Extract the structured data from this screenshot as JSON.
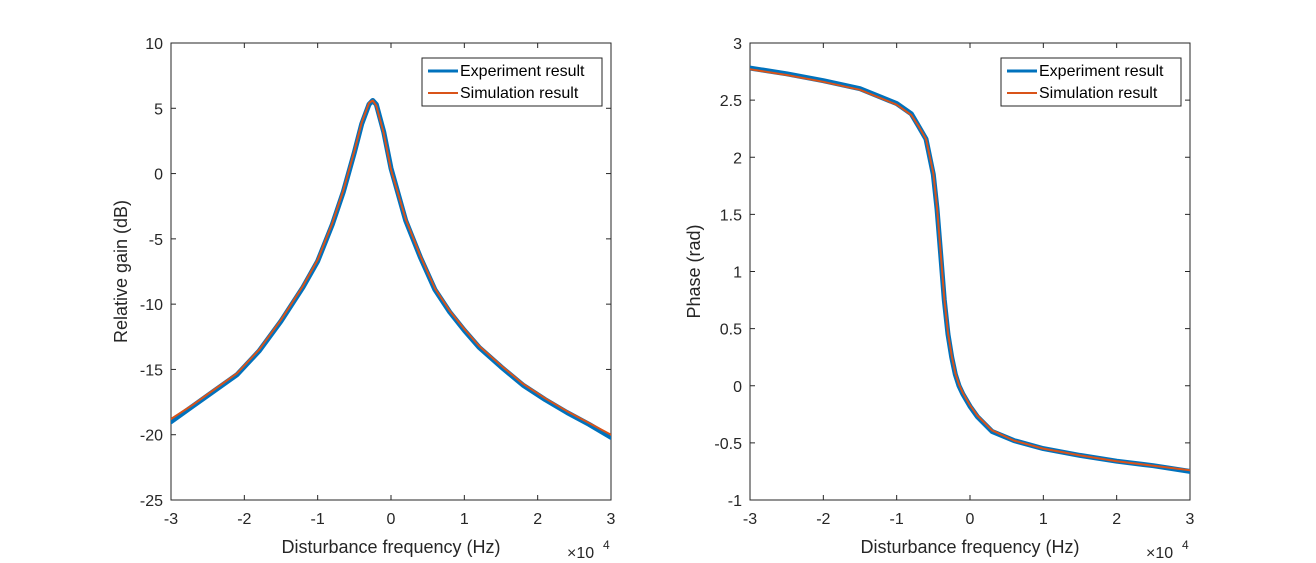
{
  "chart_data": [
    {
      "type": "line",
      "xlabel": "Disturbance frequency (Hz)",
      "ylabel": "Relative gain (dB)",
      "x_exponent_label": "×10",
      "x_exponent_power": "4",
      "xlim": [
        -30000,
        30000
      ],
      "ylim": [
        -25,
        10
      ],
      "x_tick_values": [
        -30000,
        -20000,
        -10000,
        0,
        10000,
        20000,
        30000
      ],
      "x_tick_labels": [
        "-3",
        "-2",
        "-1",
        "0",
        "1",
        "2",
        "3"
      ],
      "y_tick_values": [
        -25,
        -20,
        -15,
        -10,
        -5,
        0,
        5,
        10
      ],
      "y_tick_labels": [
        "-25",
        "-20",
        "-15",
        "-10",
        "-5",
        "0",
        "5",
        "10"
      ],
      "legend_position": "top-right",
      "series": [
        {
          "name": "Experiment result",
          "color": "#0072BD",
          "x": [
            -30000,
            -27000,
            -24000,
            -21000,
            -18000,
            -15000,
            -12000,
            -10000,
            -8000,
            -6500,
            -5000,
            -4000,
            -3000,
            -2500,
            -2000,
            -1000,
            0,
            2000,
            4000,
            6000,
            8000,
            10000,
            12000,
            15000,
            18000,
            21000,
            24000,
            27000,
            30000
          ],
          "y": [
            -19.0,
            -17.8,
            -16.6,
            -15.4,
            -13.6,
            -11.3,
            -8.7,
            -6.7,
            -3.9,
            -1.4,
            1.6,
            3.8,
            5.3,
            5.6,
            5.3,
            3.2,
            0.4,
            -3.6,
            -6.4,
            -8.9,
            -10.6,
            -12.0,
            -13.3,
            -14.8,
            -16.2,
            -17.3,
            -18.3,
            -19.2,
            -20.2
          ]
        },
        {
          "name": "Simulation result",
          "color": "#D95319",
          "x": [
            -30000,
            -27000,
            -24000,
            -21000,
            -18000,
            -15000,
            -12000,
            -10000,
            -8000,
            -6500,
            -5000,
            -4000,
            -3000,
            -2500,
            -2000,
            -1000,
            0,
            2000,
            4000,
            6000,
            8000,
            10000,
            12000,
            15000,
            18000,
            21000,
            24000,
            27000,
            30000
          ],
          "y": [
            -18.8,
            -17.7,
            -16.5,
            -15.3,
            -13.5,
            -11.2,
            -8.6,
            -6.6,
            -3.8,
            -1.3,
            1.7,
            3.9,
            5.4,
            5.6,
            5.2,
            3.1,
            0.3,
            -3.5,
            -6.3,
            -8.8,
            -10.5,
            -11.9,
            -13.2,
            -14.7,
            -16.1,
            -17.2,
            -18.2,
            -19.1,
            -20.0
          ]
        }
      ]
    },
    {
      "type": "line",
      "xlabel": "Disturbance frequency (Hz)",
      "ylabel": "Phase (rad)",
      "x_exponent_label": "×10",
      "x_exponent_power": "4",
      "xlim": [
        -30000,
        30000
      ],
      "ylim": [
        -1,
        3
      ],
      "x_tick_values": [
        -30000,
        -20000,
        -10000,
        0,
        10000,
        20000,
        30000
      ],
      "x_tick_labels": [
        "-3",
        "-2",
        "-1",
        "0",
        "1",
        "2",
        "3"
      ],
      "y_tick_values": [
        -1,
        -0.5,
        0,
        0.5,
        1,
        1.5,
        2,
        2.5,
        3
      ],
      "y_tick_labels": [
        "-1",
        "-0.5",
        "0",
        "0.5",
        "1",
        "1.5",
        "2",
        "2.5",
        "3"
      ],
      "legend_position": "top-right",
      "series": [
        {
          "name": "Experiment result",
          "color": "#0072BD",
          "x": [
            -30000,
            -25000,
            -20000,
            -15000,
            -10000,
            -8000,
            -7000,
            -6000,
            -5000,
            -4500,
            -4000,
            -3500,
            -3000,
            -2500,
            -2000,
            -1500,
            -1000,
            0,
            1000,
            3000,
            6000,
            10000,
            15000,
            20000,
            25000,
            30000
          ],
          "y": [
            2.78,
            2.73,
            2.67,
            2.6,
            2.47,
            2.38,
            2.27,
            2.16,
            1.85,
            1.55,
            1.15,
            0.75,
            0.45,
            0.25,
            0.1,
            0.0,
            -0.07,
            -0.18,
            -0.27,
            -0.4,
            -0.48,
            -0.55,
            -0.61,
            -0.66,
            -0.7,
            -0.75
          ]
        },
        {
          "name": "Simulation result",
          "color": "#D95319",
          "x": [
            -30000,
            -25000,
            -20000,
            -15000,
            -10000,
            -8000,
            -7000,
            -6000,
            -5000,
            -4500,
            -4000,
            -3500,
            -3000,
            -2500,
            -2000,
            -1500,
            -1000,
            0,
            1000,
            3000,
            6000,
            10000,
            15000,
            20000,
            25000,
            30000
          ],
          "y": [
            2.77,
            2.72,
            2.66,
            2.59,
            2.46,
            2.37,
            2.27,
            2.16,
            1.86,
            1.56,
            1.16,
            0.76,
            0.46,
            0.26,
            0.11,
            0.01,
            -0.06,
            -0.17,
            -0.26,
            -0.39,
            -0.48,
            -0.55,
            -0.61,
            -0.66,
            -0.7,
            -0.74
          ]
        }
      ]
    }
  ]
}
